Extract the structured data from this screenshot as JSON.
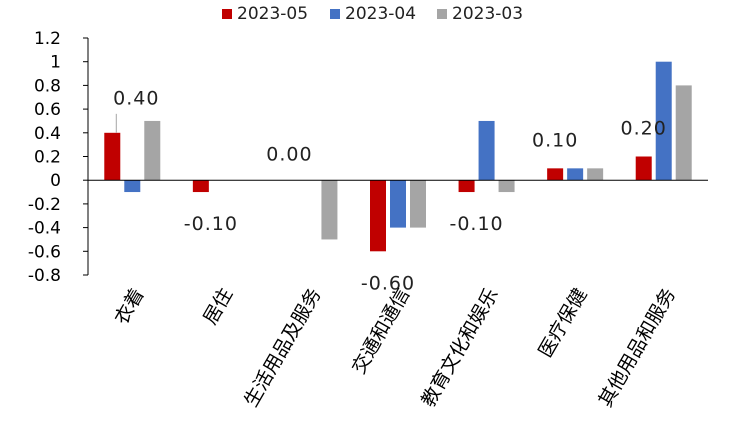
{
  "chart_data": {
    "type": "bar",
    "title": "",
    "xlabel": "",
    "ylabel": "",
    "ylim": [
      -0.8,
      1.2
    ],
    "yticks": [
      -0.8,
      -0.6,
      -0.4,
      -0.2,
      0,
      0.2,
      0.4,
      0.6,
      0.8,
      1,
      1.2
    ],
    "ytick_labels": [
      "-0.8",
      "-0.6",
      "-0.4",
      "-0.2",
      "0",
      "0.2",
      "0.4",
      "0.6",
      "0.8",
      "1",
      "1.2"
    ],
    "grid": false,
    "legend_position": "top",
    "categories": [
      "衣着",
      "居住",
      "生活用品及服务",
      "交通和通信",
      "教育文化和娱乐",
      "医疗保健",
      "其他用品和服务"
    ],
    "series": [
      {
        "name": "2023-05",
        "color": "#C00000",
        "values": [
          0.4,
          -0.1,
          0.0,
          -0.6,
          -0.1,
          0.1,
          0.2
        ]
      },
      {
        "name": "2023-04",
        "color": "#4472C4",
        "values": [
          -0.1,
          0.0,
          0.0,
          -0.4,
          0.5,
          0.1,
          1.0
        ]
      },
      {
        "name": "2023-03",
        "color": "#A5A5A5",
        "values": [
          0.5,
          0.0,
          -0.5,
          -0.4,
          -0.1,
          0.1,
          0.8
        ]
      }
    ],
    "data_labels": [
      "0.40",
      "-0.10",
      "0.00",
      "-0.60",
      "-0.10",
      "0.10",
      "0.20"
    ]
  }
}
